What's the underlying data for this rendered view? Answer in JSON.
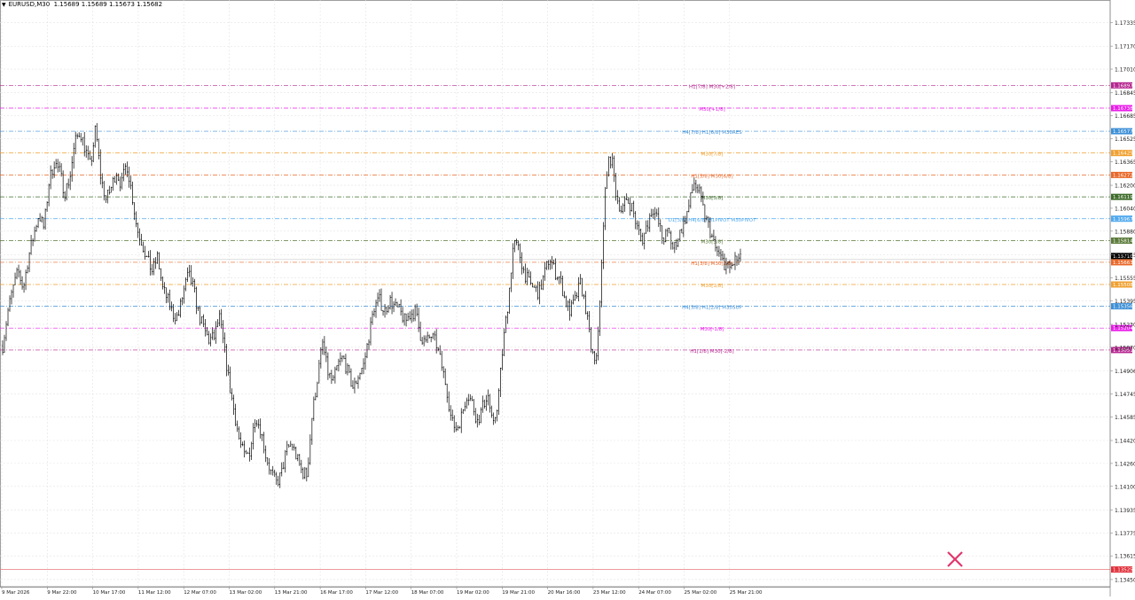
{
  "header": {
    "symbol_tf": "EURUSD,M30",
    "ohlc": "1.15689 1.15689 1.15673 1.15682",
    "arrow_icon": "triangle-down-icon"
  },
  "chart_data": {
    "type": "candlestick",
    "symbol": "EURUSD",
    "timeframe": "M30",
    "ylim": [
      1.134,
      1.1748
    ],
    "grid": true,
    "y_ticks": [
      "1.17335",
      "1.17170",
      "1.17010",
      "1.16845",
      "1.16685",
      "1.16525",
      "1.16365",
      "1.16200",
      "1.16040",
      "1.15880",
      "1.15715",
      "1.15555",
      "1.15395",
      "1.15230",
      "1.15070",
      "1.14906",
      "1.14745",
      "1.14585",
      "1.14420",
      "1.14260",
      "1.14100",
      "1.13935",
      "1.13775",
      "1.13615",
      "1.13450"
    ],
    "x_ticks": [
      "9 Mar 2026",
      "9 Mar 22:00",
      "10 Mar 17:00",
      "11 Mar 12:00",
      "12 Mar 07:00",
      "13 Mar 02:00",
      "13 Mar 21:00",
      "16 Mar 17:00",
      "17 Mar 12:00",
      "18 Mar 07:00",
      "19 Mar 02:00",
      "19 Mar 21:00",
      "20 Mar 16:00",
      "23 Mar 12:00",
      "24 Mar 07:00",
      "25 Mar 02:00",
      "25 Mar 21:00"
    ],
    "current_price": "1.15682",
    "current_bid_label": "1.15710",
    "price_line_color": "#000000",
    "close_line": {
      "price": 1.1352,
      "label": "1.13525",
      "color": "#e8777b"
    },
    "levels": [
      {
        "price": 1.16897,
        "label": "1.16897",
        "text": "H1[7/8] M30[+2/8]",
        "color": "#b5268f"
      },
      {
        "price": 1.16738,
        "label": "1.16738",
        "text": "M30[+1/8]",
        "color": "#e81ee8"
      },
      {
        "price": 1.16577,
        "label": "1.16577",
        "text": "H4[7/8] H1[6/8] M30RES",
        "color": "#3d8fd6"
      },
      {
        "price": 1.16425,
        "label": "1.16425",
        "text": "M30[7/8]",
        "color": "#f0a030"
      },
      {
        "price": 1.16272,
        "label": "1.16272",
        "text": "H1[5/8] M30[6/8]",
        "color": "#e8682a"
      },
      {
        "price": 1.16119,
        "label": "1.16119",
        "text": "M30[5/8]",
        "color": "#3d6b2a"
      },
      {
        "price": 1.15967,
        "label": "1.15967",
        "text": "D1[3/8] H4[6/8] H1PIVOT M30PIVOT",
        "color": "#4fa8ee"
      },
      {
        "price": 1.15814,
        "label": "1.15814",
        "text": "M30[3/8]",
        "color": "#5a7a3a"
      },
      {
        "price": 1.15663,
        "label": "1.15663",
        "text": "H1[3/8] M30[2/8]",
        "color": "#e8682a"
      },
      {
        "price": 1.15508,
        "label": "1.15508",
        "text": "M30[1/8]",
        "color": "#f0a030"
      },
      {
        "price": 1.15356,
        "label": "1.15356",
        "text": "H4[5/8] H1[2/8] M30SUP",
        "color": "#3d8fd6"
      },
      {
        "price": 1.15204,
        "label": "1.15204",
        "text": "M30[-1/8]",
        "color": "#e81ee8"
      },
      {
        "price": 1.15051,
        "label": "1.15051",
        "text": "H1[1/8] M30[-2/8]",
        "color": "#b5268f"
      }
    ],
    "series": [
      {
        "values": [
          1.1508,
          1.1532,
          1.1548,
          1.156,
          1.1548,
          1.157,
          1.1585,
          1.16,
          1.159,
          1.1623,
          1.1636,
          1.163,
          1.1615,
          1.1625,
          1.165,
          1.1658,
          1.1645,
          1.1633,
          1.166,
          1.1625,
          1.161,
          1.1618,
          1.163,
          1.162,
          1.1636,
          1.1615,
          1.159,
          1.158,
          1.1568,
          1.156,
          1.157,
          1.1548,
          1.154,
          1.153,
          1.1528,
          1.1545,
          1.1558,
          1.1548,
          1.153,
          1.152,
          1.1512,
          1.1514,
          1.1528,
          1.1505,
          1.148,
          1.146,
          1.144,
          1.143,
          1.1435,
          1.146,
          1.145,
          1.1432,
          1.142,
          1.1412,
          1.1418,
          1.1435,
          1.144,
          1.143,
          1.142,
          1.1418,
          1.146,
          1.1485,
          1.151,
          1.149,
          1.1482,
          1.1495,
          1.15,
          1.1488,
          1.1478,
          1.1488,
          1.1495,
          1.1515,
          1.1535,
          1.154,
          1.1532,
          1.154,
          1.1535,
          1.1532,
          1.1525,
          1.153,
          1.1532,
          1.1515,
          1.151,
          1.1515,
          1.151,
          1.1495,
          1.148,
          1.1455,
          1.145,
          1.146,
          1.1475,
          1.1468,
          1.1455,
          1.1465,
          1.1475,
          1.145,
          1.147,
          1.151,
          1.154,
          1.158,
          1.1575,
          1.156,
          1.1552,
          1.1548,
          1.1545,
          1.1558,
          1.157,
          1.156,
          1.1555,
          1.154,
          1.1532,
          1.154,
          1.1552,
          1.1535,
          1.1508,
          1.1492,
          1.1555,
          1.163,
          1.164,
          1.1612,
          1.1602,
          1.161,
          1.1605,
          1.159,
          1.1582,
          1.1593,
          1.1605,
          1.1595,
          1.1582,
          1.1588,
          1.1575,
          1.1585,
          1.1593,
          1.1605,
          1.1622,
          1.1615,
          1.16,
          1.159,
          1.1577,
          1.157,
          1.1565,
          1.1562,
          1.1568,
          1.1568
        ]
      }
    ]
  },
  "close_icon": "close-x-icon"
}
